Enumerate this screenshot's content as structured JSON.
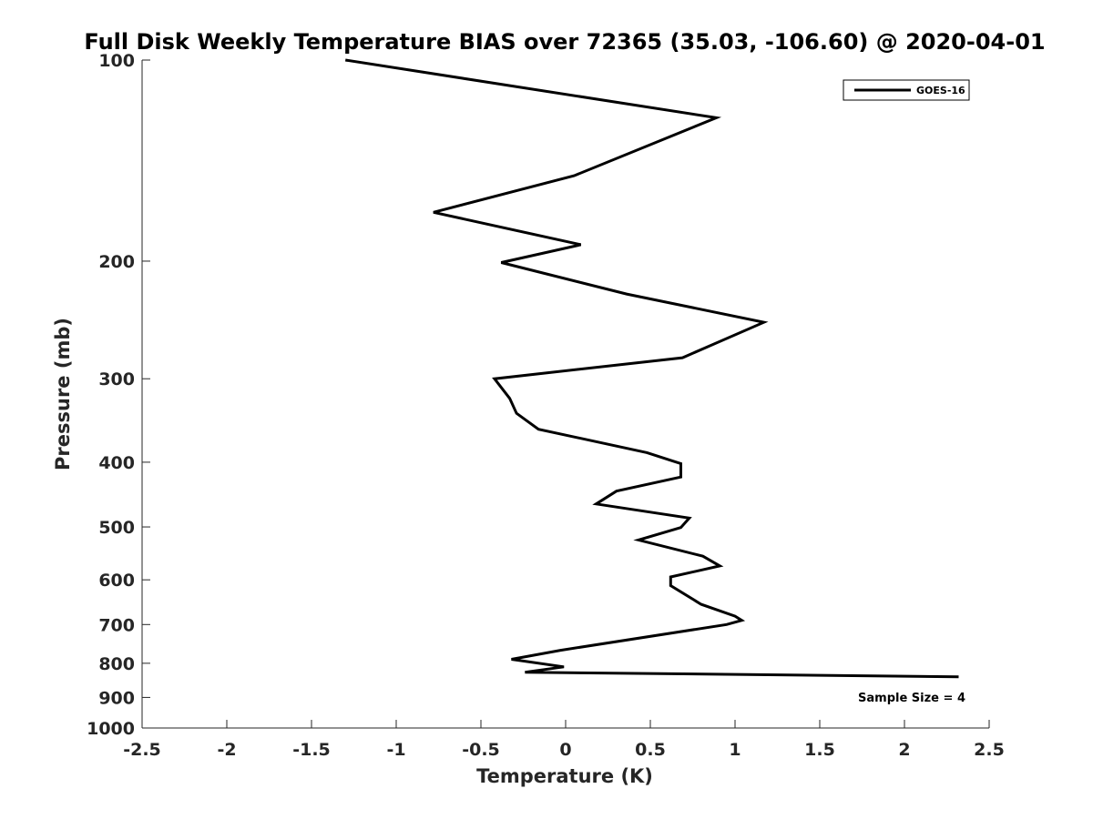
{
  "chart_data": {
    "type": "line",
    "title": "Full Disk Weekly Temperature BIAS over 72365 (35.03, -106.60) @ 2020-04-01",
    "xlabel": "Temperature (K)",
    "ylabel": "Pressure (mb)",
    "xlim": [
      -2.5,
      2.5
    ],
    "ylim": [
      100,
      1000
    ],
    "y_scale": "log",
    "y_reversed": true,
    "grid": false,
    "legend_position": "top-right",
    "x_ticks": [
      "-2.5",
      "-2",
      "-1.5",
      "-1",
      "-0.5",
      "0",
      "0.5",
      "1",
      "1.5",
      "2",
      "2.5"
    ],
    "y_ticks": [
      "100",
      "200",
      "300",
      "400",
      "500",
      "600",
      "700",
      "800",
      "900",
      "1000"
    ],
    "series": [
      {
        "name": "GOES-16",
        "color": "#000000",
        "points": [
          {
            "x": -1.3,
            "p": 100
          },
          {
            "x": 0.89,
            "p": 122
          },
          {
            "x": 0.05,
            "p": 149
          },
          {
            "x": -0.78,
            "p": 169
          },
          {
            "x": 0.09,
            "p": 189
          },
          {
            "x": -0.38,
            "p": 201
          },
          {
            "x": 0.36,
            "p": 224
          },
          {
            "x": 1.17,
            "p": 247
          },
          {
            "x": 0.69,
            "p": 279
          },
          {
            "x": -0.42,
            "p": 300
          },
          {
            "x": -0.33,
            "p": 321
          },
          {
            "x": -0.29,
            "p": 338
          },
          {
            "x": -0.16,
            "p": 357
          },
          {
            "x": 0.48,
            "p": 387
          },
          {
            "x": 0.68,
            "p": 402
          },
          {
            "x": 0.68,
            "p": 421
          },
          {
            "x": 0.3,
            "p": 442
          },
          {
            "x": 0.18,
            "p": 462
          },
          {
            "x": 0.73,
            "p": 485
          },
          {
            "x": 0.68,
            "p": 501
          },
          {
            "x": 0.43,
            "p": 523
          },
          {
            "x": 0.81,
            "p": 553
          },
          {
            "x": 0.91,
            "p": 572
          },
          {
            "x": 0.62,
            "p": 594
          },
          {
            "x": 0.62,
            "p": 612
          },
          {
            "x": 0.8,
            "p": 653
          },
          {
            "x": 1.0,
            "p": 680
          },
          {
            "x": 1.04,
            "p": 690
          },
          {
            "x": 0.95,
            "p": 700
          },
          {
            "x": -0.03,
            "p": 765
          },
          {
            "x": -0.32,
            "p": 789
          },
          {
            "x": -0.01,
            "p": 810
          },
          {
            "x": -0.24,
            "p": 825
          },
          {
            "x": 2.32,
            "p": 838
          }
        ]
      }
    ],
    "annotation": "Sample Size = 4"
  }
}
